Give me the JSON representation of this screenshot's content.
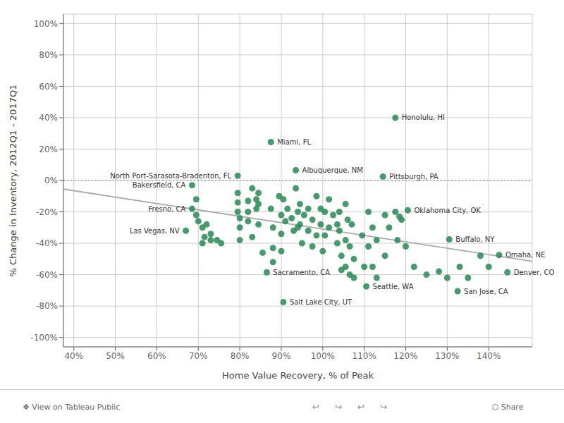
{
  "chart_data": {
    "type": "scatter",
    "xlabel": "Home Value Recovery, % of Peak",
    "ylabel": "% Change in Inventory, 2012Q1 - 2017Q1",
    "grid": true,
    "xlim": [
      0.375,
      1.505
    ],
    "ylim": [
      -1.06,
      1.06
    ],
    "xticks": [
      {
        "value": 0.4,
        "label": "40%"
      },
      {
        "value": 0.5,
        "label": "50%"
      },
      {
        "value": 0.6,
        "label": "60%"
      },
      {
        "value": 0.7,
        "label": "70%"
      },
      {
        "value": 0.8,
        "label": "80%"
      },
      {
        "value": 0.9,
        "label": "90%"
      },
      {
        "value": 1.0,
        "label": "100%"
      },
      {
        "value": 1.1,
        "label": "110%"
      },
      {
        "value": 1.2,
        "label": "120%"
      },
      {
        "value": 1.3,
        "label": "130%"
      },
      {
        "value": 1.4,
        "label": "140%"
      }
    ],
    "yticks": [
      {
        "value": -1.0,
        "label": "-100%"
      },
      {
        "value": -0.8,
        "label": "-80%"
      },
      {
        "value": -0.6,
        "label": "-60%"
      },
      {
        "value": -0.4,
        "label": "-40%"
      },
      {
        "value": -0.2,
        "label": "-20%"
      },
      {
        "value": 0.0,
        "label": "0%"
      },
      {
        "value": 0.2,
        "label": "20%"
      },
      {
        "value": 0.4,
        "label": "40%"
      },
      {
        "value": 0.6,
        "label": "60%"
      },
      {
        "value": 0.8,
        "label": "80%"
      },
      {
        "value": 1.0,
        "label": "100%"
      }
    ],
    "series": [
      {
        "type": "scatter",
        "marker": "circle",
        "color": "#2d8c57",
        "x": [
          0.695,
          0.695,
          0.7,
          0.71,
          0.72,
          0.73,
          0.73,
          0.745,
          0.755,
          0.71,
          0.715,
          0.795,
          0.795,
          0.795,
          0.8,
          0.8,
          0.8,
          0.82,
          0.82,
          0.82,
          0.83,
          0.83,
          0.84,
          0.84,
          0.845,
          0.845,
          0.845,
          0.855,
          0.875,
          0.88,
          0.88,
          0.88,
          0.895,
          0.9,
          0.9,
          0.9,
          0.905,
          0.91,
          0.915,
          0.925,
          0.93,
          0.935,
          0.94,
          0.94,
          0.945,
          0.945,
          0.95,
          0.955,
          0.965,
          0.965,
          0.975,
          0.975,
          0.985,
          0.985,
          0.995,
          0.995,
          1.0,
          1.005,
          1.005,
          1.015,
          1.015,
          1.025,
          1.035,
          1.035,
          1.04,
          1.04,
          1.045,
          1.045,
          1.055,
          1.055,
          1.055,
          1.06,
          1.065,
          1.065,
          1.07,
          1.075,
          1.075,
          1.095,
          1.1,
          1.11,
          1.11,
          1.12,
          1.12,
          1.13,
          1.13,
          1.15,
          1.15,
          1.16,
          1.175,
          1.18,
          1.185,
          1.19,
          1.2,
          1.22,
          1.25,
          1.28,
          1.3,
          1.33,
          1.35,
          1.38,
          1.4,
          0.685,
          0.685,
          0.67,
          0.795,
          0.875,
          0.935,
          1.175,
          1.145,
          1.205,
          1.305,
          1.425,
          1.105,
          1.325,
          1.445,
          0.865,
          0.905
        ],
        "values": [
          -0.12,
          -0.22,
          -0.26,
          -0.3,
          -0.28,
          -0.34,
          -0.38,
          -0.38,
          -0.4,
          -0.4,
          -0.36,
          -0.08,
          -0.14,
          -0.2,
          -0.24,
          -0.3,
          -0.38,
          -0.13,
          -0.2,
          -0.26,
          -0.05,
          -0.36,
          -0.12,
          -0.18,
          -0.08,
          -0.15,
          -0.28,
          -0.46,
          -0.18,
          -0.3,
          -0.43,
          -0.52,
          -0.1,
          -0.22,
          -0.34,
          -0.45,
          -0.12,
          -0.26,
          -0.18,
          -0.24,
          -0.32,
          -0.05,
          -0.2,
          -0.3,
          -0.15,
          -0.28,
          -0.4,
          -0.22,
          -0.18,
          -0.32,
          -0.25,
          -0.42,
          -0.1,
          -0.35,
          -0.18,
          -0.28,
          -0.45,
          -0.2,
          -0.35,
          -0.12,
          -0.3,
          -0.22,
          -0.28,
          -0.4,
          -0.2,
          -0.32,
          -0.48,
          -0.57,
          -0.15,
          -0.38,
          -0.55,
          -0.25,
          -0.42,
          -0.6,
          -0.28,
          -0.5,
          -0.62,
          -0.35,
          -0.55,
          -0.2,
          -0.42,
          -0.3,
          -0.55,
          -0.38,
          -0.62,
          -0.22,
          -0.48,
          -0.3,
          -0.2,
          -0.38,
          -0.23,
          -0.25,
          -0.42,
          -0.55,
          -0.6,
          -0.58,
          -0.62,
          -0.55,
          -0.62,
          -0.48,
          -0.55,
          -0.03,
          -0.18,
          -0.32,
          0.03,
          0.245,
          0.065,
          0.4,
          0.025,
          -0.19,
          -0.375,
          -0.475,
          -0.675,
          -0.705,
          -0.585,
          -0.585,
          -0.775
        ]
      },
      {
        "type": "line",
        "color": "#aaaaaa",
        "x": [
          0.375,
          1.505
        ],
        "values": [
          -0.055,
          -0.515
        ]
      }
    ],
    "reference_lines": [
      {
        "y": 0,
        "color": "#888888",
        "line_style": "dotted"
      }
    ],
    "annotations": [
      {
        "x": 0.685,
        "y": -0.03,
        "text": "Bakersfield, CA"
      },
      {
        "x": 0.685,
        "y": -0.18,
        "text": "Fresno, CA"
      },
      {
        "x": 0.67,
        "y": -0.32,
        "text": "Las Vegas, NV"
      },
      {
        "x": 0.795,
        "y": 0.03,
        "text": "North Port-Sarasota-Bradenton, FL"
      },
      {
        "x": 0.875,
        "y": 0.245,
        "text": "Miami, FL"
      },
      {
        "x": 0.935,
        "y": 0.065,
        "text": "Albuquerque, NM"
      },
      {
        "x": 1.175,
        "y": 0.4,
        "text": "Honolulu, HI"
      },
      {
        "x": 1.145,
        "y": 0.025,
        "text": "Pittsburgh, PA"
      },
      {
        "x": 1.205,
        "y": -0.19,
        "text": "Oklahoma City, OK"
      },
      {
        "x": 1.305,
        "y": -0.375,
        "text": "Buffalo, NY"
      },
      {
        "x": 1.425,
        "y": -0.475,
        "text": "Omaha, NE"
      },
      {
        "x": 1.105,
        "y": -0.675,
        "text": "Seattle, WA"
      },
      {
        "x": 1.325,
        "y": -0.705,
        "text": "San Jose, CA"
      },
      {
        "x": 1.445,
        "y": -0.585,
        "text": "Denver, CO"
      },
      {
        "x": 0.865,
        "y": -0.585,
        "text": "Sacramento, CA"
      },
      {
        "x": 0.905,
        "y": -0.775,
        "text": "Salt Lake City, UT"
      }
    ],
    "footer": [
      "❖ View on Tableau Public",
      "↩",
      "↪",
      "↩",
      "↪",
      "⬡ Share"
    ]
  }
}
